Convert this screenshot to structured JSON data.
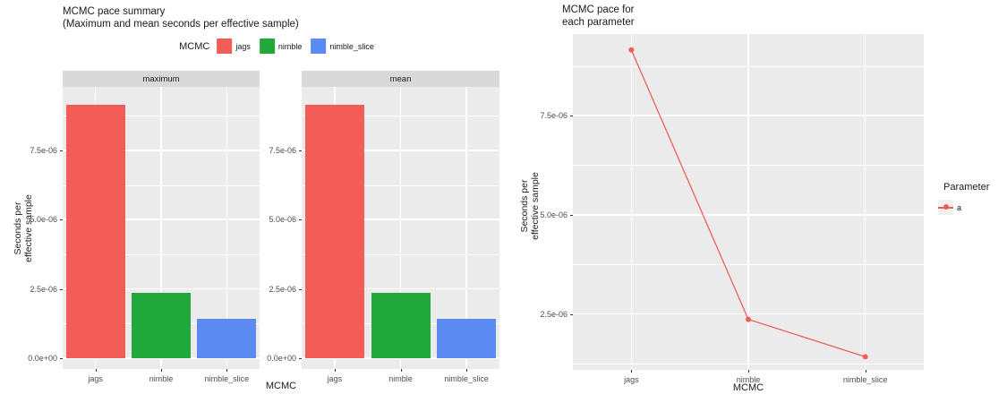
{
  "palette": {
    "jags": "#F25D58",
    "nimble": "#21A83A",
    "nimble_slice": "#5B8BF0",
    "panel_bg": "#EBEBEB",
    "strip_bg": "#D9D9D9",
    "grid": "#FFFFFF",
    "tick_text": "#4D4D4D",
    "legend_key_bg": "#F0F0F0"
  },
  "chart_data": [
    {
      "type": "bar",
      "title": "MCMC pace summary\n (Maximum and mean seconds per effective sample)",
      "facets": [
        "maximum",
        "mean"
      ],
      "categories": [
        "jags",
        "nimble",
        "nimble_slice"
      ],
      "series": [
        {
          "name": "maximum",
          "values": [
            9.15e-06,
            2.37e-06,
            1.43e-06
          ]
        },
        {
          "name": "mean",
          "values": [
            9.15e-06,
            2.37e-06,
            1.43e-06
          ]
        }
      ],
      "bar_colors": [
        "#F25D58",
        "#21A83A",
        "#5B8BF0"
      ],
      "xlabel": "MCMC",
      "ylabel": "Seconds per\neffective sample",
      "ylim": [
        -3.9e-07,
        9.8e-06
      ],
      "yticks": [
        {
          "v": 0,
          "label": "0.0e+00"
        },
        {
          "v": 2.5e-06,
          "label": "2.5e-06"
        },
        {
          "v": 5e-06,
          "label": "5.0e-06"
        },
        {
          "v": 7.5e-06,
          "label": "7.5e-06"
        }
      ],
      "yminor": [
        1.25e-06,
        3.75e-06,
        6.25e-06,
        8.75e-06
      ],
      "grid": true,
      "legend": {
        "title": "MCMC",
        "position": "top",
        "items": [
          {
            "label": "jags",
            "color": "#F25D58"
          },
          {
            "label": "nimble",
            "color": "#21A83A"
          },
          {
            "label": "nimble_slice",
            "color": "#5B8BF0"
          }
        ]
      }
    },
    {
      "type": "line",
      "title": "MCMC pace for\n each parameter",
      "categories": [
        "jags",
        "nimble",
        "nimble_slice"
      ],
      "series": [
        {
          "name": "a",
          "values": [
            9.15e-06,
            2.37e-06,
            1.43e-06
          ],
          "color": "#F25D58"
        }
      ],
      "xlabel": "MCMC",
      "ylabel": "Seconds per\neffective sample",
      "ylim": [
        1.1e-06,
        9.55e-06
      ],
      "yticks": [
        {
          "v": 2.5e-06,
          "label": "2.5e-06"
        },
        {
          "v": 5e-06,
          "label": "5.0e-06"
        },
        {
          "v": 7.5e-06,
          "label": "7.5e-06"
        }
      ],
      "yminor": [
        1.25e-06,
        3.75e-06,
        6.25e-06,
        8.75e-06
      ],
      "grid": true,
      "legend": {
        "title": "Parameter",
        "position": "right",
        "items": [
          {
            "label": "a",
            "color": "#F25D58"
          }
        ]
      }
    }
  ]
}
